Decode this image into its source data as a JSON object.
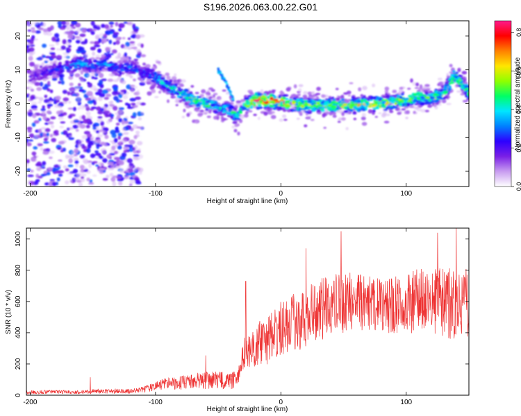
{
  "title": "S196.2026.063.00.22.G01",
  "chart_data": [
    {
      "type": "heatmap",
      "name": "spectrogram",
      "xlabel": "Height of straight line (km)",
      "ylabel": "Frequency (Hz)",
      "xlim": [
        -203,
        150
      ],
      "ylim": [
        -24.5,
        24.5
      ],
      "xticks": [
        -200,
        -100,
        0,
        100
      ],
      "yticks": [
        -20,
        -10,
        0,
        10,
        20
      ],
      "colorbar": {
        "label": "Normalized spectral amplitude",
        "range": [
          0,
          0.86
        ],
        "ticks": [
          0.0,
          0.2,
          0.4,
          0.6,
          0.8
        ],
        "colors": [
          "#ffffff",
          "#c89cf0",
          "#7a1fe6",
          "#2d00ff",
          "#0080ff",
          "#00e6ff",
          "#00ff66",
          "#90ff00",
          "#ffe600",
          "#ff8000",
          "#ff0000",
          "#ff1a8c"
        ]
      },
      "ridge": {
        "x": [
          -200,
          -180,
          -160,
          -150,
          -140,
          -130,
          -120,
          -110,
          -100,
          -90,
          -80,
          -70,
          -60,
          -50,
          -40,
          -35,
          -30,
          -25,
          -20,
          -10,
          0,
          10,
          20,
          40,
          60,
          80,
          100,
          110,
          120,
          130,
          138,
          145,
          150
        ],
        "freq": [
          8,
          10,
          12,
          11,
          12,
          10,
          11,
          9,
          8,
          5,
          3,
          1,
          0,
          -1,
          -2,
          -4,
          -1,
          0,
          1,
          1,
          0.5,
          0,
          -0.5,
          -0.5,
          -0.5,
          0,
          1,
          2,
          1.5,
          3,
          8,
          6,
          3
        ],
        "amp": [
          0.2,
          0.25,
          0.35,
          0.3,
          0.35,
          0.3,
          0.3,
          0.3,
          0.35,
          0.4,
          0.45,
          0.55,
          0.5,
          0.4,
          0.5,
          0.45,
          0.45,
          0.55,
          0.8,
          0.75,
          0.7,
          0.6,
          0.55,
          0.55,
          0.6,
          0.6,
          0.55,
          0.5,
          0.5,
          0.5,
          0.55,
          0.5,
          0.5
        ]
      },
      "secondary_branch": {
        "x": [
          -50,
          -45,
          -40,
          -38
        ],
        "freq": [
          10,
          7,
          3,
          1
        ]
      }
    },
    {
      "type": "line",
      "name": "snr",
      "xlabel": "Height of straight line (km)",
      "ylabel": "SNR (10 * v/v)",
      "xlim": [
        -203,
        150
      ],
      "ylim": [
        0,
        1070
      ],
      "xticks": [
        -200,
        -100,
        0,
        100
      ],
      "yticks": [
        0,
        200,
        400,
        600,
        800,
        1000
      ],
      "color": "#ee3333",
      "envelope": {
        "x": [
          -203,
          -160,
          -150,
          -120,
          -110,
          -100,
          -90,
          -80,
          -70,
          -60,
          -50,
          -40,
          -35,
          -30,
          -28,
          -20,
          -10,
          0,
          10,
          20,
          30,
          40,
          50,
          60,
          70,
          80,
          90,
          100,
          110,
          120,
          130,
          140,
          150
        ],
        "mean": [
          20,
          20,
          25,
          25,
          35,
          60,
          75,
          80,
          90,
          95,
          100,
          90,
          100,
          250,
          280,
          320,
          360,
          420,
          470,
          500,
          540,
          580,
          600,
          590,
          600,
          580,
          590,
          590,
          600,
          600,
          600,
          590,
          600
        ],
        "spread": [
          12,
          12,
          15,
          15,
          20,
          30,
          40,
          45,
          50,
          55,
          55,
          55,
          60,
          90,
          110,
          140,
          160,
          180,
          190,
          200,
          200,
          200,
          200,
          190,
          180,
          190,
          200,
          200,
          210,
          220,
          230,
          240,
          240
        ]
      },
      "peaks": [
        {
          "x": -152,
          "y": 115
        },
        {
          "x": -60,
          "y": 255
        },
        {
          "x": -28,
          "y": 730
        },
        {
          "x": 20,
          "y": 940
        },
        {
          "x": 48,
          "y": 1050
        },
        {
          "x": 125,
          "y": 1040
        },
        {
          "x": 140,
          "y": 1070
        }
      ]
    }
  ]
}
